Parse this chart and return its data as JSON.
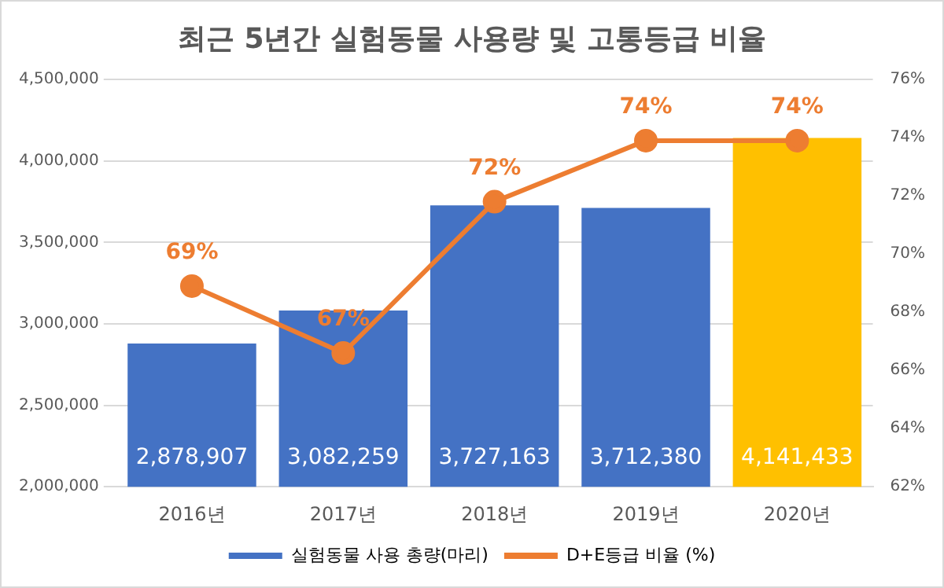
{
  "chart_data": {
    "type": "bar",
    "title": "최근 5년간 실험동물 사용량 및 고통등급 비율",
    "categories": [
      "2016년",
      "2017년",
      "2018년",
      "2019년",
      "2020년"
    ],
    "series": [
      {
        "name": "실험동물 사용 총량(마리)",
        "color": "#4472c4",
        "colors": [
          "#4472c4",
          "#4472c4",
          "#4472c4",
          "#4472c4",
          "#ffc000"
        ],
        "values": [
          2878907,
          3082259,
          3727163,
          3712380,
          4141433
        ],
        "value_labels": [
          "2,878,907",
          "3,082,259",
          "3,727,163",
          "3,712,380",
          "4,141,433"
        ]
      },
      {
        "name": "D+E등급 비율 (%)",
        "type": "line",
        "axis": "y2",
        "color": "#ed7d31",
        "values": [
          68.9,
          66.6,
          71.8,
          73.9,
          73.9
        ],
        "value_labels": [
          "69%",
          "67%",
          "72%",
          "74%",
          "74%"
        ],
        "marker": "circle"
      }
    ],
    "ylim": [
      2000000,
      4500000
    ],
    "yticks": [
      {
        "value": 2000000,
        "label": "2,000,000"
      },
      {
        "value": 2500000,
        "label": "2,500,000"
      },
      {
        "value": 3000000,
        "label": "3,000,000"
      },
      {
        "value": 3500000,
        "label": "3,500,000"
      },
      {
        "value": 4000000,
        "label": "4,000,000"
      },
      {
        "value": 4500000,
        "label": "4,500,000"
      }
    ],
    "y2lim": [
      62,
      76
    ],
    "y2ticks": [
      {
        "value": 62,
        "label": "62%"
      },
      {
        "value": 64,
        "label": "64%"
      },
      {
        "value": 66,
        "label": "66%"
      },
      {
        "value": 68,
        "label": "68%"
      },
      {
        "value": 70,
        "label": "70%"
      },
      {
        "value": 72,
        "label": "72%"
      },
      {
        "value": 74,
        "label": "74%"
      },
      {
        "value": 76,
        "label": "76%"
      }
    ],
    "grid": "y",
    "legend": "bottom"
  }
}
